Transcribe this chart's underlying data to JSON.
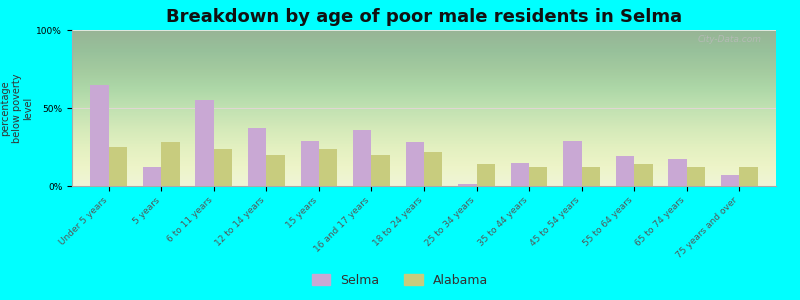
{
  "title": "Breakdown by age of poor male residents in Selma",
  "ylabel": "percentage\nbelow poverty\nlevel",
  "categories": [
    "Under 5 years",
    "5 years",
    "6 to 11 years",
    "12 to 14 years",
    "15 years",
    "16 and 17 years",
    "18 to 24 years",
    "25 to 34 years",
    "35 to 44 years",
    "45 to 54 years",
    "55 to 64 years",
    "65 to 74 years",
    "75 years and over"
  ],
  "selma_values": [
    65,
    12,
    55,
    37,
    29,
    36,
    28,
    1,
    15,
    29,
    19,
    17,
    7
  ],
  "alabama_values": [
    25,
    28,
    24,
    20,
    24,
    20,
    22,
    14,
    12,
    12,
    14,
    12,
    12
  ],
  "selma_color": "#c9a8d4",
  "alabama_color": "#c8cc7e",
  "background_color": "#00ffff",
  "title_fontsize": 13,
  "ylabel_fontsize": 7,
  "tick_fontsize": 6.5,
  "legend_fontsize": 9,
  "ylim": [
    0,
    100
  ],
  "yticks": [
    0,
    50,
    100
  ],
  "ytick_labels": [
    "0%",
    "50%",
    "100%"
  ],
  "watermark": "City-Data.com"
}
